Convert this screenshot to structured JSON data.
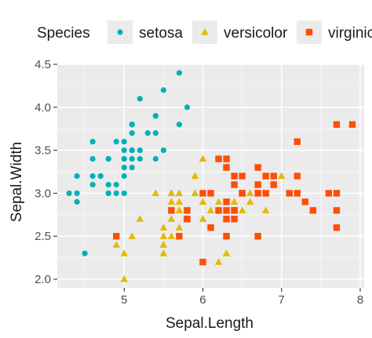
{
  "chart_data": {
    "type": "scatter",
    "xlabel": "Sepal.Length",
    "ylabel": "Sepal.Width",
    "xlim": [
      4.15,
      8.05
    ],
    "ylim": [
      1.9,
      4.5
    ],
    "x_ticks": [
      5,
      6,
      7,
      8
    ],
    "y_ticks": [
      2.0,
      2.5,
      3.0,
      3.5,
      4.0,
      4.5
    ],
    "y_tick_labels": [
      "2.0",
      "2.5",
      "3.0",
      "3.5",
      "4.0",
      "4.5"
    ],
    "grid": true,
    "legend": {
      "title": "Species",
      "position": "top"
    },
    "series": [
      {
        "name": "setosa",
        "color": "#00AFBB",
        "shape": "circle",
        "points": [
          [
            4.3,
            3.0
          ],
          [
            4.4,
            3.0
          ],
          [
            4.4,
            2.9
          ],
          [
            4.4,
            3.2
          ],
          [
            4.5,
            2.3
          ],
          [
            4.6,
            3.1
          ],
          [
            4.6,
            3.4
          ],
          [
            4.6,
            3.6
          ],
          [
            4.6,
            3.2
          ],
          [
            4.7,
            3.2
          ],
          [
            4.7,
            3.2
          ],
          [
            4.8,
            3.4
          ],
          [
            4.8,
            3.0
          ],
          [
            4.8,
            3.4
          ],
          [
            4.8,
            3.1
          ],
          [
            4.8,
            3.0
          ],
          [
            4.9,
            3.0
          ],
          [
            4.9,
            3.1
          ],
          [
            4.9,
            3.6
          ],
          [
            5.0,
            3.6
          ],
          [
            5.0,
            3.4
          ],
          [
            5.0,
            3.0
          ],
          [
            5.0,
            3.4
          ],
          [
            5.0,
            3.2
          ],
          [
            5.0,
            3.5
          ],
          [
            5.0,
            3.3
          ],
          [
            5.1,
            3.5
          ],
          [
            5.1,
            3.5
          ],
          [
            5.1,
            3.8
          ],
          [
            5.1,
            3.7
          ],
          [
            5.1,
            3.3
          ],
          [
            5.1,
            3.4
          ],
          [
            5.1,
            3.8
          ],
          [
            5.2,
            3.5
          ],
          [
            5.2,
            3.4
          ],
          [
            5.2,
            4.1
          ],
          [
            5.3,
            3.7
          ],
          [
            5.4,
            3.9
          ],
          [
            5.4,
            3.7
          ],
          [
            5.4,
            3.9
          ],
          [
            5.4,
            3.4
          ],
          [
            5.5,
            4.2
          ],
          [
            5.5,
            3.5
          ],
          [
            5.7,
            4.4
          ],
          [
            5.7,
            3.8
          ],
          [
            5.8,
            4.0
          ]
        ]
      },
      {
        "name": "versicolor",
        "color": "#E7B800",
        "shape": "triangle",
        "points": [
          [
            4.9,
            2.4
          ],
          [
            5.0,
            2.0
          ],
          [
            5.0,
            2.3
          ],
          [
            5.1,
            2.5
          ],
          [
            5.2,
            2.7
          ],
          [
            5.4,
            3.0
          ],
          [
            5.5,
            2.3
          ],
          [
            5.5,
            2.4
          ],
          [
            5.5,
            2.4
          ],
          [
            5.5,
            2.5
          ],
          [
            5.5,
            2.6
          ],
          [
            5.6,
            2.9
          ],
          [
            5.6,
            3.0
          ],
          [
            5.6,
            2.5
          ],
          [
            5.6,
            3.0
          ],
          [
            5.6,
            2.7
          ],
          [
            5.7,
            2.8
          ],
          [
            5.7,
            2.6
          ],
          [
            5.7,
            3.0
          ],
          [
            5.7,
            2.9
          ],
          [
            5.7,
            2.8
          ],
          [
            5.8,
            2.7
          ],
          [
            5.8,
            2.7
          ],
          [
            5.9,
            3.0
          ],
          [
            5.9,
            3.2
          ],
          [
            6.0,
            2.2
          ],
          [
            6.0,
            2.9
          ],
          [
            6.0,
            2.7
          ],
          [
            6.0,
            3.4
          ],
          [
            6.1,
            2.8
          ],
          [
            6.1,
            3.0
          ],
          [
            6.2,
            2.9
          ],
          [
            6.2,
            2.2
          ],
          [
            6.3,
            3.3
          ],
          [
            6.3,
            2.5
          ],
          [
            6.3,
            2.3
          ],
          [
            6.4,
            2.9
          ],
          [
            6.5,
            2.8
          ],
          [
            6.6,
            2.9
          ],
          [
            6.6,
            3.0
          ],
          [
            6.7,
            3.1
          ],
          [
            6.7,
            3.0
          ],
          [
            6.8,
            2.8
          ],
          [
            6.9,
            3.1
          ],
          [
            7.0,
            3.2
          ]
        ]
      },
      {
        "name": "virginica",
        "color": "#FC4E07",
        "shape": "square",
        "points": [
          [
            4.9,
            2.5
          ],
          [
            5.6,
            2.8
          ],
          [
            5.7,
            2.5
          ],
          [
            5.8,
            2.7
          ],
          [
            5.8,
            2.8
          ],
          [
            5.8,
            2.7
          ],
          [
            6.0,
            2.2
          ],
          [
            6.0,
            3.0
          ],
          [
            6.1,
            3.0
          ],
          [
            6.1,
            2.6
          ],
          [
            6.2,
            2.8
          ],
          [
            6.2,
            3.4
          ],
          [
            6.3,
            3.3
          ],
          [
            6.3,
            2.9
          ],
          [
            6.3,
            2.7
          ],
          [
            6.3,
            2.8
          ],
          [
            6.3,
            3.4
          ],
          [
            6.3,
            2.5
          ],
          [
            6.4,
            3.2
          ],
          [
            6.4,
            2.7
          ],
          [
            6.4,
            2.8
          ],
          [
            6.4,
            3.1
          ],
          [
            6.4,
            2.8
          ],
          [
            6.5,
            3.0
          ],
          [
            6.5,
            3.2
          ],
          [
            6.5,
            3.0
          ],
          [
            6.7,
            2.5
          ],
          [
            6.7,
            3.3
          ],
          [
            6.7,
            3.1
          ],
          [
            6.7,
            3.0
          ],
          [
            6.8,
            3.0
          ],
          [
            6.8,
            3.2
          ],
          [
            6.9,
            3.2
          ],
          [
            6.9,
            3.1
          ],
          [
            7.1,
            3.0
          ],
          [
            7.2,
            3.6
          ],
          [
            7.2,
            3.2
          ],
          [
            7.2,
            3.0
          ],
          [
            7.3,
            2.9
          ],
          [
            7.4,
            2.8
          ],
          [
            7.6,
            3.0
          ],
          [
            7.7,
            3.8
          ],
          [
            7.7,
            2.6
          ],
          [
            7.7,
            2.8
          ],
          [
            7.7,
            3.0
          ],
          [
            7.9,
            3.8
          ]
        ]
      }
    ]
  }
}
